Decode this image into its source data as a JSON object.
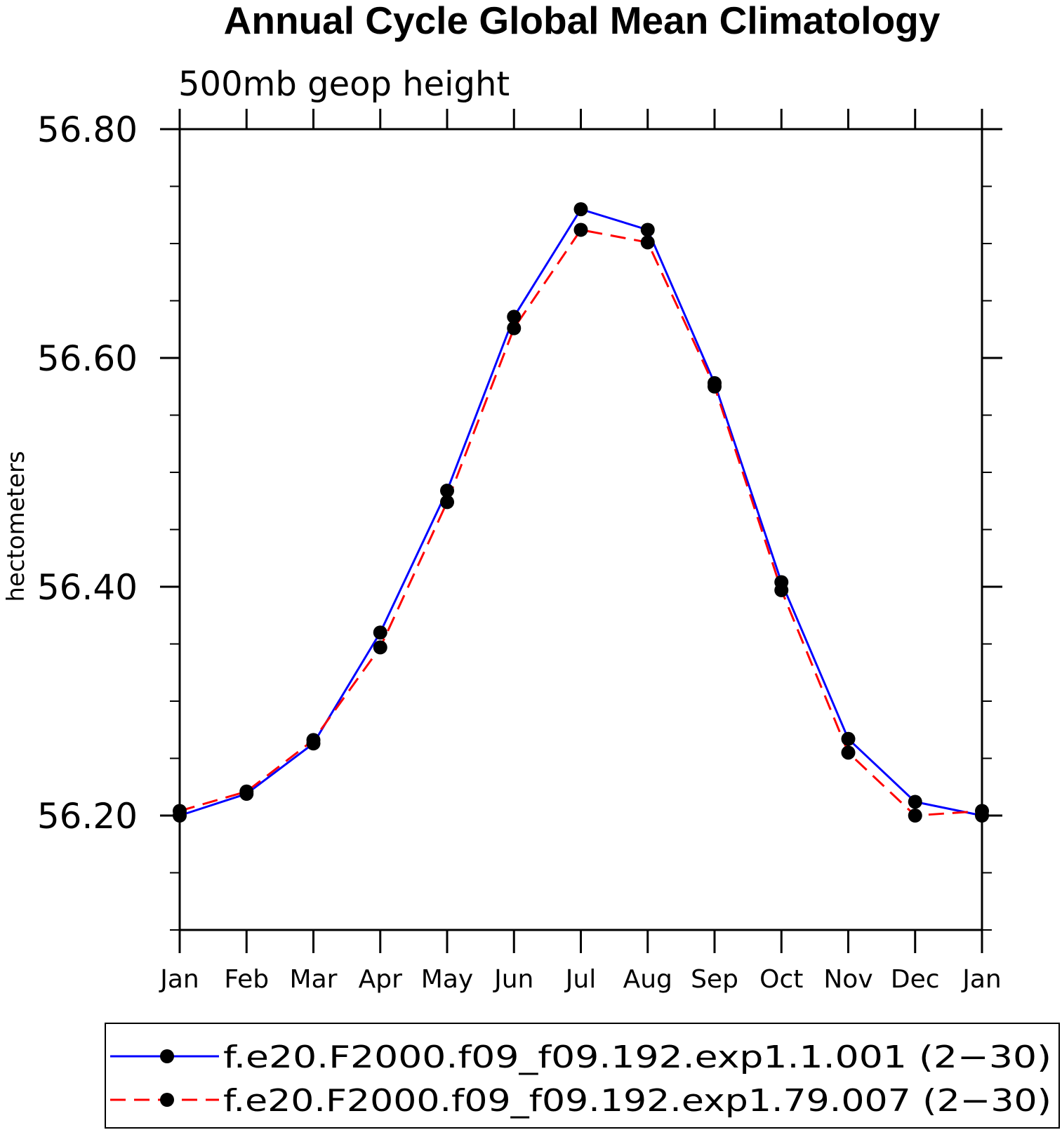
{
  "chart_data": {
    "type": "line",
    "title": "Annual Cycle Global Mean Climatology",
    "subtitle": "500mb geop height",
    "ylabel": "hectometers",
    "xlabel": "",
    "categories": [
      "Jan",
      "Feb",
      "Mar",
      "Apr",
      "May",
      "Jun",
      "Jul",
      "Aug",
      "Sep",
      "Oct",
      "Nov",
      "Dec",
      "Jan"
    ],
    "ylim": [
      56.1,
      56.8
    ],
    "yticks": [
      "56.20",
      "56.40",
      "56.60",
      "56.80"
    ],
    "yticks_values": [
      56.2,
      56.4,
      56.6,
      56.8
    ],
    "yminor_step": 0.05,
    "grid": false,
    "legend_position": "bottom",
    "series": [
      {
        "name": "f.e20.F2000.f09_f09.192.exp1.1.001 (2−30)",
        "color": "#0000ff",
        "line_style": "solid",
        "marker": "filled-circle",
        "values": [
          56.2,
          56.219,
          56.263,
          56.36,
          56.484,
          56.636,
          56.73,
          56.712,
          56.578,
          56.404,
          56.267,
          56.212,
          56.2
        ]
      },
      {
        "name": "f.e20.F2000.f09_f09.192.exp1.79.007 (2−30)",
        "color": "#ff0000",
        "line_style": "dashed",
        "marker": "filled-circle",
        "values": [
          56.204,
          56.221,
          56.266,
          56.347,
          56.474,
          56.626,
          56.712,
          56.701,
          56.575,
          56.397,
          56.255,
          56.2,
          56.204
        ]
      }
    ]
  }
}
